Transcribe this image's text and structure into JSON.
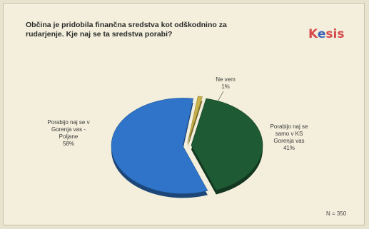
{
  "chart_data": {
    "type": "pie",
    "title_lines": [
      "Občina je pridobila finančna sredstva kot odškodnino za",
      "rudarjenje. Kje naj se ta sredstva porabi?"
    ],
    "slices": [
      {
        "label_lines": [
          "Porabijo naj se",
          "samo v KS",
          "Gorenja vas"
        ],
        "value_text": "41%",
        "value": 41,
        "color": "#1e5a34"
      },
      {
        "label_lines": [
          "Porabijo naj se v",
          "Gorenja vas -",
          "Poljane"
        ],
        "value_text": "58%",
        "value": 58,
        "color": "#2f74c8"
      },
      {
        "label_lines": [
          "Ne vem"
        ],
        "value_text": "1%",
        "value": 1,
        "color": "#c9b24a"
      }
    ],
    "note": "N = 350"
  },
  "logo": {
    "text_a": "K",
    "text_dot": "e",
    "text_b": "sis"
  }
}
